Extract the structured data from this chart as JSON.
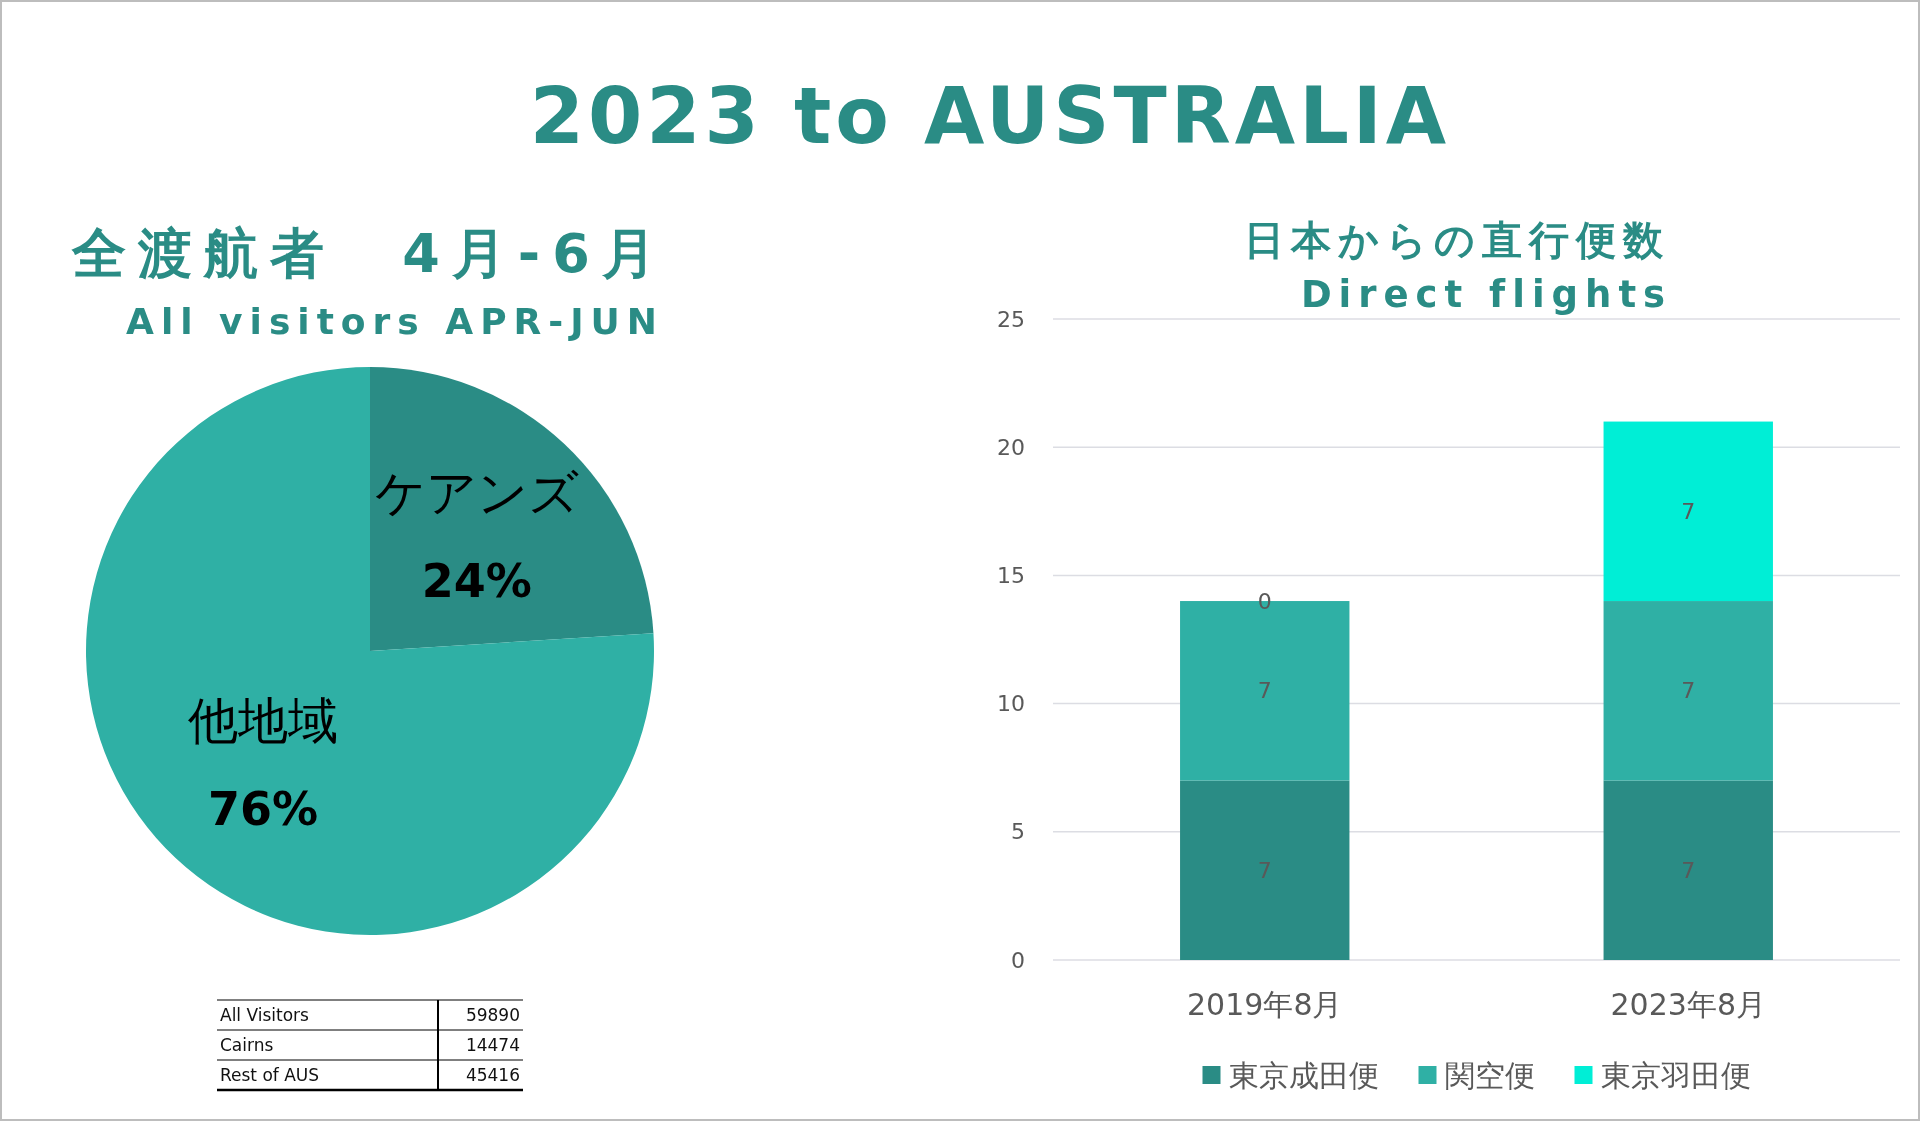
{
  "chart_data": [
    {
      "type": "other",
      "title": "2023 to AUSTRALIA"
    },
    {
      "type": "pie",
      "title": "全渡航者　4月-6月",
      "subtitle": "All visitors APR-JUN",
      "categories": [
        "ケアンズ",
        "他地域"
      ],
      "values": [
        24,
        76
      ],
      "colors": [
        "#2a8c85",
        "#2fb0a5"
      ],
      "value_labels": [
        "24%",
        "76%"
      ],
      "annotations": [
        "All Visitors",
        "59890",
        "Cairns",
        "14474",
        "Rest of AUS",
        "45416"
      ]
    },
    {
      "type": "bar",
      "title": "日本からの直行便数",
      "subtitle": "Direct flights",
      "categories": [
        "2019年8月",
        "2023年8月"
      ],
      "stacked": true,
      "series": [
        {
          "name": "東京成田便",
          "color": "#2a8c85",
          "values": [
            7,
            7
          ]
        },
        {
          "name": "関空便",
          "color": "#2fb0a5",
          "values": [
            7,
            7
          ]
        },
        {
          "name": "東京羽田便",
          "color": "#00eed6",
          "values": [
            0,
            7
          ]
        }
      ],
      "ylim": [
        0,
        25
      ],
      "yticks": [
        0,
        5,
        10,
        15,
        20,
        25
      ],
      "grid": "y",
      "legend": "bottom",
      "data_labels": true
    }
  ]
}
